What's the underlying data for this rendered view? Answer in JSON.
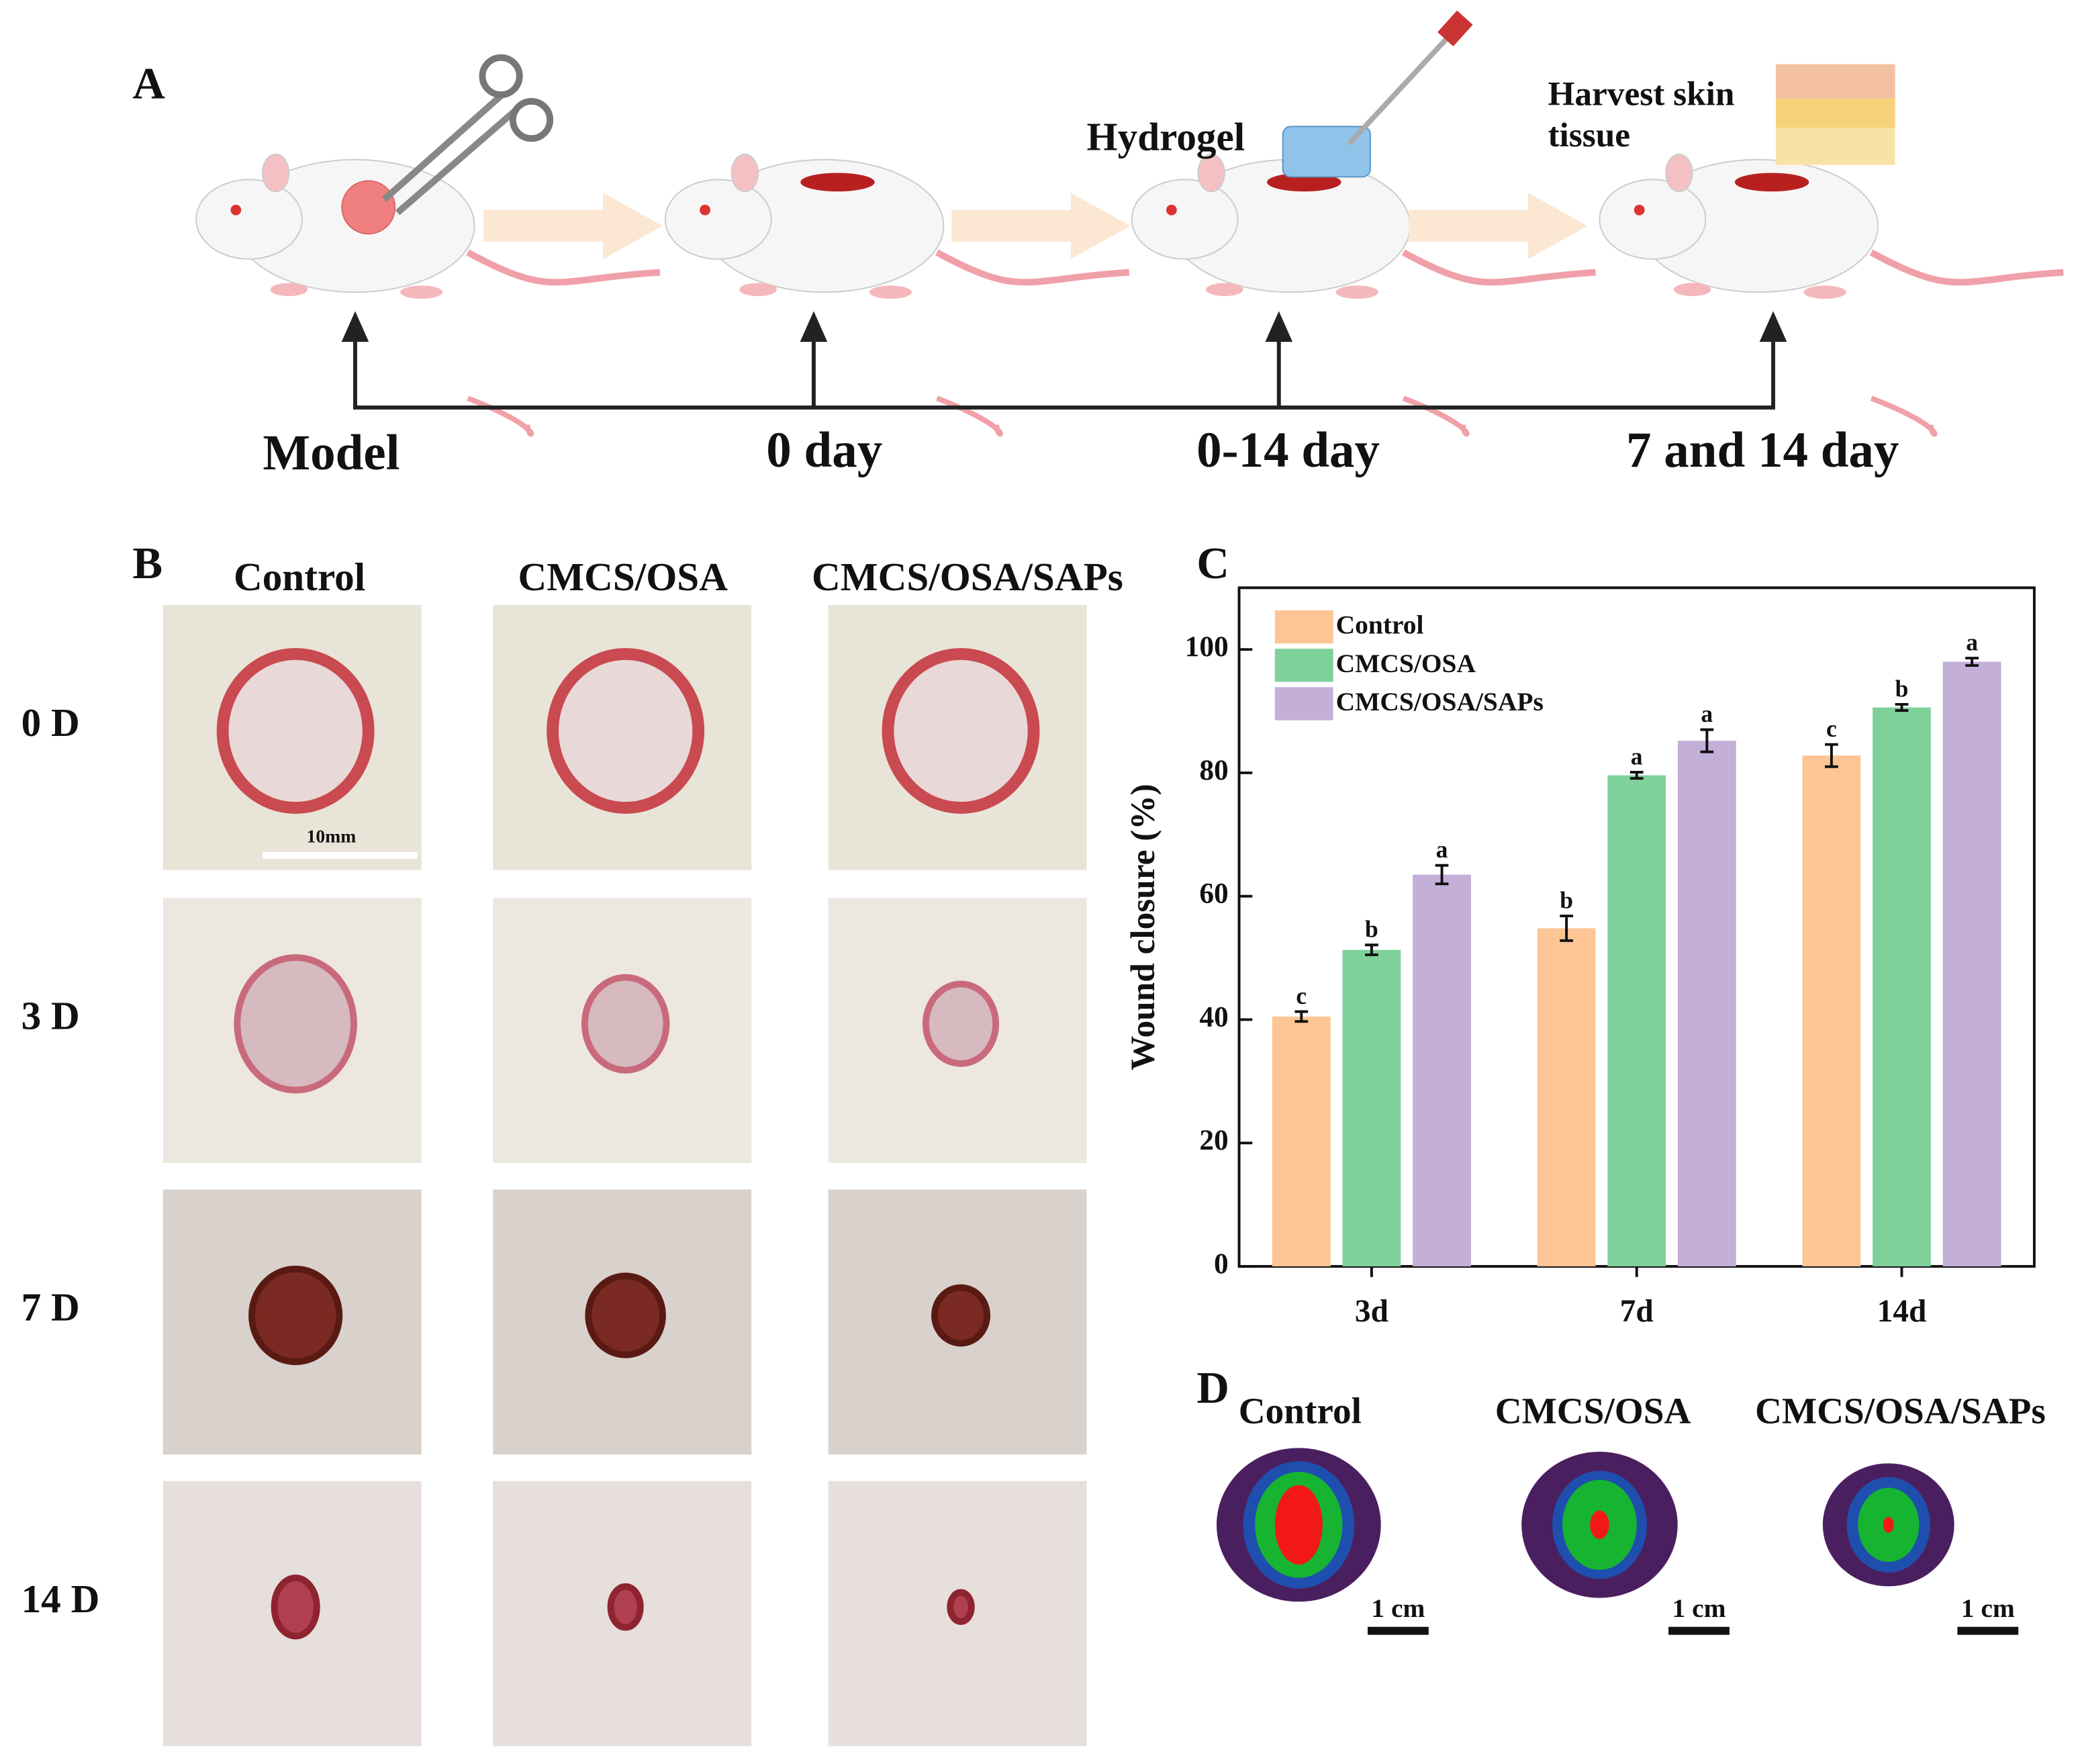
{
  "panel_labels": [
    "A",
    "B",
    "C",
    "D"
  ],
  "panel_a": {
    "steps": [
      "Model",
      "0 day",
      "0-14 day",
      "7 and 14 day"
    ],
    "hydrogel": "Hydrogel",
    "harvest": [
      "Harvest skin",
      "tissue"
    ]
  },
  "panel_b": {
    "columns": [
      "Control",
      "CMCS/OSA",
      "CMCS/OSA/SAPs"
    ],
    "rows": [
      "0 D",
      "3 D",
      "7 D",
      "14 D"
    ],
    "scale_bar": "10mm"
  },
  "chart_data": {
    "type": "bar",
    "y_label": "Wound closure (%)",
    "categories": [
      "3d",
      "7d",
      "14d"
    ],
    "series": [
      {
        "name": "Control",
        "color": "#fdc594",
        "values": [
          40.5,
          54.8,
          82.8
        ],
        "errors": [
          0.8,
          2.0,
          1.8
        ],
        "significance": [
          "c",
          "b",
          "c"
        ]
      },
      {
        "name": "CMCS/OSA",
        "color": "#7fd19b",
        "values": [
          51.3,
          79.6,
          90.6
        ],
        "errors": [
          0.8,
          0.5,
          0.5
        ],
        "significance": [
          "b",
          "a",
          "b"
        ]
      },
      {
        "name": "CMCS/OSA/SAPs",
        "color": "#c4afd8",
        "values": [
          63.5,
          85.2,
          98.0
        ],
        "errors": [
          1.5,
          1.8,
          0.6
        ],
        "significance": [
          "a",
          "a",
          "a"
        ]
      }
    ],
    "ylim": [
      0,
      110
    ],
    "yticks": [
      0,
      20,
      40,
      60,
      80,
      100
    ],
    "legend": "upper-left"
  },
  "panel_d": {
    "groups": [
      "Control",
      "CMCS/OSA",
      "CMCS/OSA/SAPs"
    ],
    "scale_bar": "1 cm"
  }
}
